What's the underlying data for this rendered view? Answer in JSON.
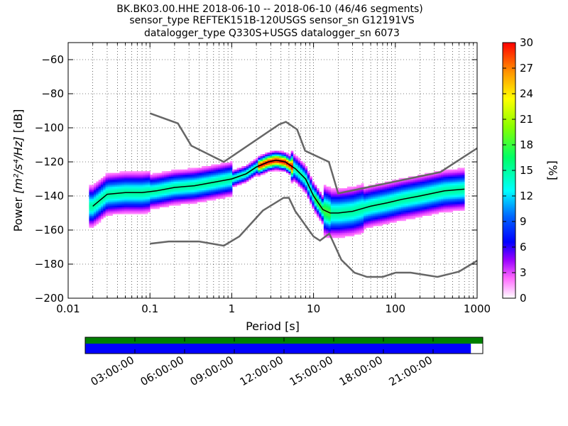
{
  "title_lines": [
    "BK.BK03.00.HHE   2018-06-10 -- 2018-06-10  (46/46 segments)",
    "sensor_type REFTEK151B-120USGS sensor_sn G12191VS",
    "datalogger_type Q330S+USGS datalogger_sn 6073"
  ],
  "chart_data": {
    "type": "heatmap",
    "xlabel": "Period [s]",
    "ylabel_prefix": "Power ",
    "ylabel_units": "[m²/s⁴/Hz]",
    "ylabel_suffix": " [dB]",
    "x_scale": "log",
    "xlim": [
      0.01,
      1000
    ],
    "ylim": [
      -200,
      -50
    ],
    "x_ticks": [
      0.01,
      0.1,
      1,
      10,
      100,
      1000
    ],
    "x_tick_labels": [
      "0.01",
      "0.1",
      "1",
      "10",
      "100",
      "1000"
    ],
    "y_ticks": [
      -200,
      -180,
      -160,
      -140,
      -120,
      -100,
      -80,
      -60
    ],
    "y_tick_labels": [
      "−200",
      "−180",
      "−160",
      "−140",
      "−120",
      "−100",
      "−80",
      "−60"
    ],
    "grid": "dotted",
    "colorbar": {
      "label": "[%]",
      "min": 0,
      "max": 30,
      "ticks": [
        0,
        3,
        6,
        9,
        12,
        15,
        18,
        21,
        24,
        27,
        30
      ],
      "tick_labels": [
        "0",
        "3",
        "6",
        "9",
        "12",
        "15",
        "18",
        "21",
        "24",
        "27",
        "30"
      ]
    },
    "mean_curve": {
      "period": [
        0.02,
        0.03,
        0.05,
        0.08,
        0.12,
        0.2,
        0.35,
        0.6,
        1.0,
        1.5,
        2.0,
        2.8,
        3.5,
        4.5,
        6.0,
        8.0,
        10,
        13,
        16,
        20,
        30,
        50,
        80,
        120,
        200,
        400,
        700
      ],
      "power": [
        -146,
        -139,
        -138,
        -138,
        -137,
        -135,
        -134,
        -132,
        -130,
        -127,
        -123,
        -120,
        -119,
        -120,
        -124,
        -130,
        -140,
        -148,
        -150,
        -150,
        -149,
        -146,
        -144,
        -142,
        -140,
        -137,
        -136
      ]
    },
    "nhnm": {
      "period": [
        0.1,
        0.22,
        0.32,
        0.8,
        3.8,
        4.6,
        6.3,
        7.9,
        15.4,
        20,
        354.8,
        1000
      ],
      "power": [
        -91.5,
        -97.4,
        -110.5,
        -120,
        -98,
        -96.5,
        -101,
        -113.5,
        -120,
        -138.5,
        -126,
        -112
      ]
    },
    "nlnm": {
      "period": [
        0.1,
        0.17,
        0.4,
        0.8,
        1.24,
        2.4,
        4.3,
        5,
        6,
        10,
        12,
        15.6,
        21.9,
        31.6,
        45,
        70,
        101,
        154,
        328,
        600,
        1000
      ],
      "power": [
        -168,
        -166.7,
        -166.7,
        -169.2,
        -163.7,
        -148.6,
        -141.1,
        -141.1,
        -149,
        -163.8,
        -166.2,
        -162.1,
        -177.5,
        -185,
        -187.5,
        -187.5,
        -185,
        -185,
        -187.5,
        -184.4,
        -178
      ]
    },
    "data_availability": {
      "time_ticks": [
        "03:00:00",
        "06:00:00",
        "09:00:00",
        "12:00:00",
        "15:00:00",
        "18:00:00",
        "21:00:00"
      ],
      "data_fraction": 0.97
    }
  },
  "colors": {
    "model_lines": "#666666",
    "mean_line": "#000000",
    "availability_top": "#008000",
    "availability_bottom": "#0000ff"
  }
}
